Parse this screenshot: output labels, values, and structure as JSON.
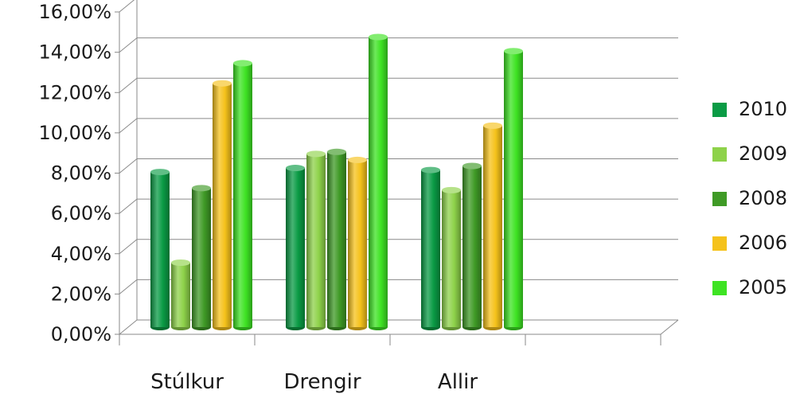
{
  "chart_data": {
    "type": "bar",
    "categories": [
      "Stúlkur",
      "Drengir",
      "Allir"
    ],
    "series": [
      {
        "name": "2010",
        "color": "#0a9b45",
        "values": [
          7.7,
          7.9,
          7.8
        ]
      },
      {
        "name": "2009",
        "color": "#8ed24a",
        "values": [
          3.2,
          8.6,
          6.8
        ]
      },
      {
        "name": "2008",
        "color": "#3f9a26",
        "values": [
          6.9,
          8.7,
          8.0
        ]
      },
      {
        "name": "2006",
        "color": "#f5c21b",
        "values": [
          12.1,
          8.3,
          10.0
        ]
      },
      {
        "name": "2005",
        "color": "#3ee323",
        "values": [
          13.1,
          14.4,
          13.7
        ]
      }
    ],
    "yticks": [
      "0,00%",
      "2,00%",
      "4,00%",
      "6,00%",
      "8,00%",
      "10,00%",
      "12,00%",
      "14,00%",
      "16,00%"
    ],
    "ylim": [
      0,
      16
    ],
    "grid": true,
    "legend": "right",
    "title": "",
    "xlabel": "",
    "ylabel": ""
  }
}
